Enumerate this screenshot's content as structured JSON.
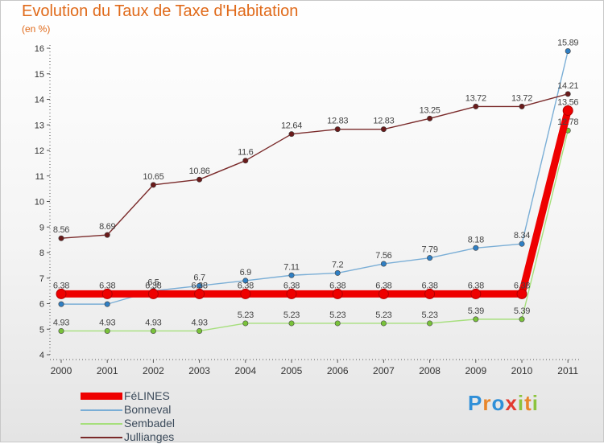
{
  "title": "Evolution du Taux de Taxe d'Habitation",
  "unit_label": "(en %)",
  "logo": {
    "text": "Proxiti",
    "letters": [
      {
        "ch": "P",
        "color": "#2f8fd8"
      },
      {
        "ch": "r",
        "color": "#e8862a"
      },
      {
        "ch": "o",
        "color": "#2f8fd8"
      },
      {
        "ch": "x",
        "color": "#e23a2f"
      },
      {
        "ch": "i",
        "color": "#8cc43e"
      },
      {
        "ch": "t",
        "color": "#e8862a"
      },
      {
        "ch": "i",
        "color": "#8cc43e"
      }
    ]
  },
  "chart_data": {
    "type": "line",
    "title": "Evolution du Taux de Taxe d'Habitation",
    "ylabel": "(en %)",
    "xlabel": "",
    "x": [
      "2000",
      "2001",
      "2002",
      "2003",
      "2004",
      "2005",
      "2006",
      "2007",
      "2008",
      "2009",
      "2010",
      "2011"
    ],
    "ylim": [
      4,
      16
    ],
    "yticks": [
      4,
      5,
      6,
      7,
      8,
      9,
      10,
      11,
      12,
      13,
      14,
      15,
      16
    ],
    "grid": false,
    "legend_position": "bottom-left",
    "series": [
      {
        "name": "FéLINES",
        "color": "#ee0000",
        "marker_color": "#ee0000",
        "emphasis": true,
        "values": [
          6.38,
          6.38,
          6.38,
          6.38,
          6.38,
          6.38,
          6.38,
          6.38,
          6.38,
          6.38,
          6.38,
          13.56
        ],
        "labels": [
          "6.38",
          "6.38",
          "6.38",
          "6.38",
          "6.38",
          "6.38",
          "6.38",
          "6.38",
          "6.38",
          "6.38",
          "6.38",
          "13.56"
        ]
      },
      {
        "name": "Bonneval",
        "color": "#7aaed6",
        "marker_color": "#2f7fc4",
        "emphasis": false,
        "values": [
          5.98,
          5.98,
          6.5,
          6.7,
          6.9,
          7.11,
          7.2,
          7.56,
          7.79,
          8.18,
          8.34,
          15.89
        ],
        "labels": [
          "",
          "",
          "6.5",
          "6.7",
          "6.9",
          "7.11",
          "7.2",
          "7.56",
          "7.79",
          "8.18",
          "8.34",
          "15.89"
        ]
      },
      {
        "name": "Sembadel",
        "color": "#a6df7c",
        "marker_color": "#79c23a",
        "emphasis": false,
        "values": [
          4.93,
          4.93,
          4.93,
          4.93,
          5.23,
          5.23,
          5.23,
          5.23,
          5.23,
          5.39,
          5.39,
          12.78
        ],
        "labels": [
          "4.93",
          "4.93",
          "4.93",
          "4.93",
          "5.23",
          "5.23",
          "5.23",
          "5.23",
          "5.23",
          "5.39",
          "5.39",
          "12.78"
        ]
      },
      {
        "name": "Jullianges",
        "color": "#7a2a2a",
        "marker_color": "#6a1a1a",
        "emphasis": false,
        "values": [
          8.56,
          8.69,
          10.65,
          10.86,
          11.6,
          12.64,
          12.83,
          12.83,
          13.25,
          13.72,
          13.72,
          14.21
        ],
        "labels": [
          "8.56",
          "8.69",
          "10.65",
          "10.86",
          "11.6",
          "12.64",
          "12.83",
          "12.83",
          "13.25",
          "13.72",
          "13.72",
          "14.21"
        ]
      }
    ]
  }
}
